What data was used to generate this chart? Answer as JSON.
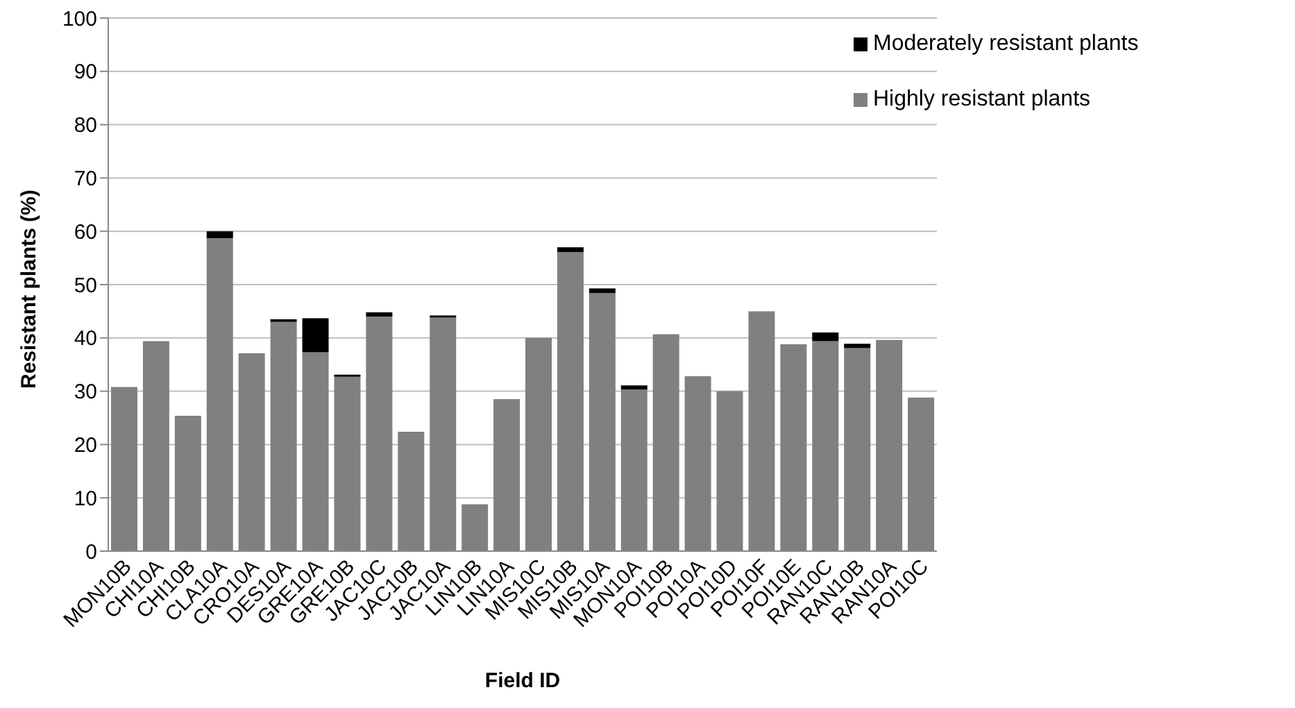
{
  "chart_data": {
    "type": "bar",
    "stacked": true,
    "xlabel": "Field ID",
    "ylabel": "Resistant plants (%)",
    "categories": [
      "MON10B",
      "CHI10A",
      "CHI10B",
      "CLA10A",
      "CRO10A",
      "DES10A",
      "GRE10A",
      "GRE10B",
      "JAC10C",
      "JAC10B",
      "JAC10A",
      "LIN10B",
      "LIN10A",
      "MIS10C",
      "MIS10B",
      "MIS10A",
      "MON10A",
      "POI10B",
      "POI10A",
      "POI10D",
      "POI10F",
      "POI10E",
      "RAN10C",
      "RAN10B",
      "RAN10A",
      "POI10C"
    ],
    "series": [
      {
        "name": "Highly resistant plants",
        "color": "#808080",
        "values": [
          30.8,
          39.4,
          25.4,
          58.7,
          37.1,
          43.0,
          37.3,
          32.7,
          44.0,
          22.4,
          43.8,
          8.8,
          28.5,
          40.0,
          56.1,
          48.4,
          30.3,
          40.7,
          32.8,
          30.0,
          45.0,
          38.8,
          39.4,
          38.1,
          39.6,
          28.8
        ]
      },
      {
        "name": "Moderately resistant plants",
        "color": "#000000",
        "values": [
          0,
          0,
          0,
          1.3,
          0,
          0.5,
          6.4,
          0.4,
          0.8,
          0,
          0.4,
          0,
          0,
          0,
          0.9,
          0.9,
          0.8,
          0,
          0,
          0,
          0,
          0,
          1.6,
          0.8,
          0,
          0
        ]
      }
    ],
    "ylim": [
      0,
      100
    ],
    "yticks": [
      0,
      10,
      20,
      30,
      40,
      50,
      60,
      70,
      80,
      90,
      100
    ],
    "grid": "y",
    "legend": "top right"
  }
}
